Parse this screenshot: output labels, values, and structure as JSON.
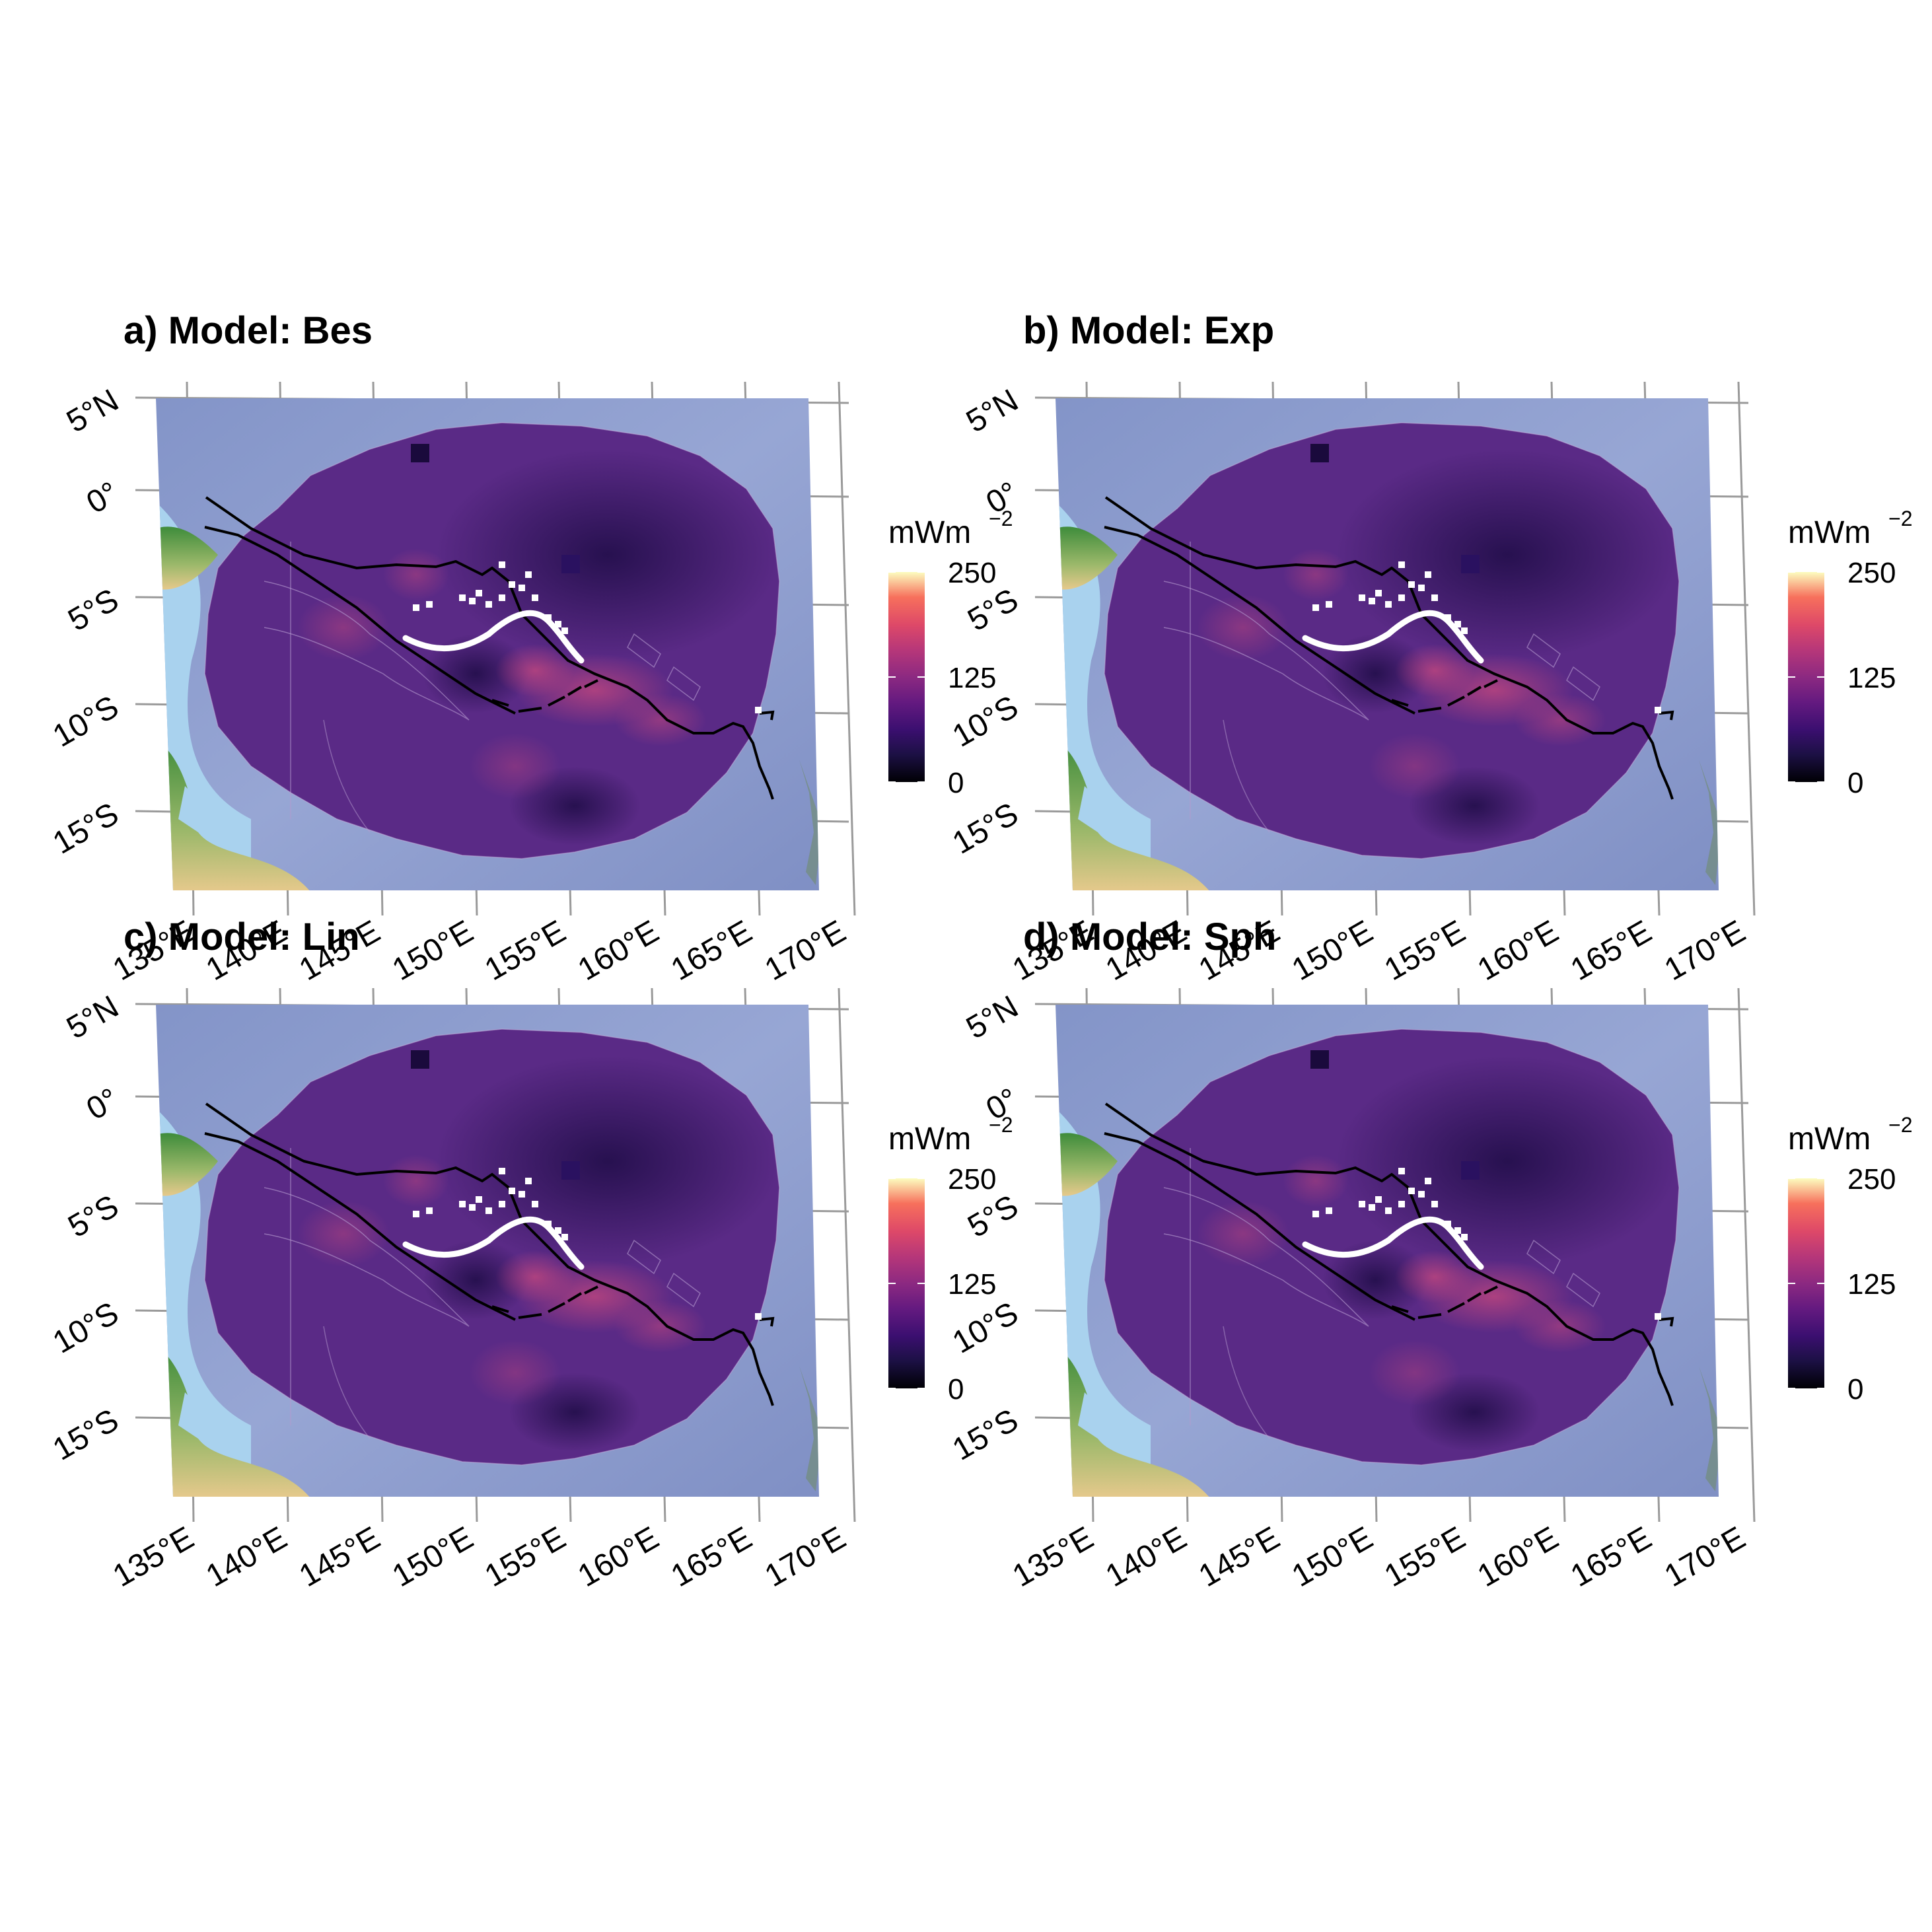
{
  "figure": {
    "panels": [
      {
        "id": "a",
        "title": "a) Model: Bes"
      },
      {
        "id": "b",
        "title": "b) Model: Exp"
      },
      {
        "id": "c",
        "title": "c) Model: Lin"
      },
      {
        "id": "d",
        "title": "d) Model: Sph"
      }
    ],
    "lat_labels": [
      "5°N",
      "0°",
      "5°S",
      "10°S",
      "15°S"
    ],
    "lon_labels": [
      "135°E",
      "140°E",
      "145°E",
      "150°E",
      "155°E",
      "160°E",
      "165°E",
      "170°E"
    ],
    "legend": {
      "title": "mWm",
      "exponent": "−2",
      "ticks": [
        "250",
        "125",
        "0"
      ],
      "range": [
        0,
        250
      ],
      "colormap": "magma"
    },
    "colors": {
      "ocean": "#8899cc",
      "shelf": "#a9d2ee",
      "land_low": "#3f8a3a",
      "land_high": "#e4c98a",
      "heatflow_base": "#5a2a86",
      "high_anomaly": "#c0467e",
      "trench": "#000000",
      "volcanic_arc": "#ffffff",
      "graticule": "#9a9a9a"
    }
  }
}
